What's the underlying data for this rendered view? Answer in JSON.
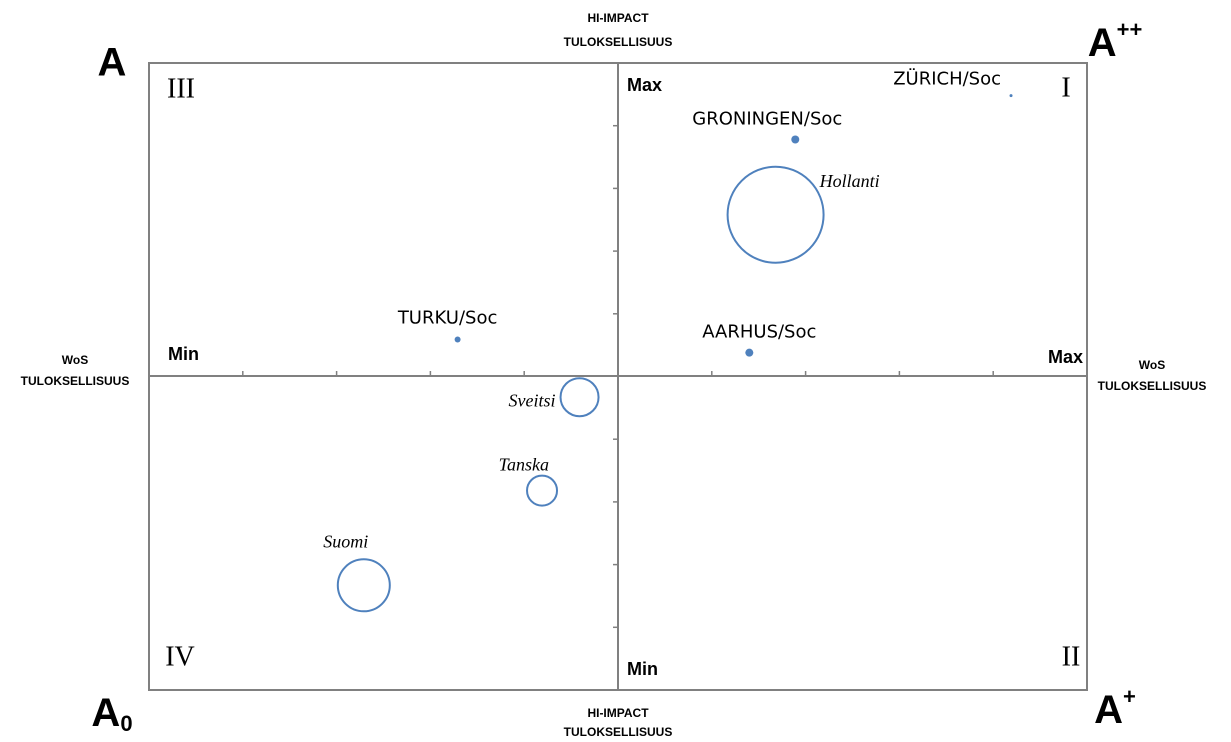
{
  "chart_data": {
    "type": "bubble",
    "top_axis_title": [
      "HI-IMPACT",
      "TULOKSELLISUUS"
    ],
    "bottom_axis_title": [
      "HI-IMPACT",
      "TULOKSELLISUUS"
    ],
    "left_axis_title": [
      "WoS",
      "TULOKSELLISUUS"
    ],
    "right_axis_title": [
      "WoS",
      "TULOKSELLISUUS"
    ],
    "corners": {
      "top_left": {
        "base": "A",
        "mark": ""
      },
      "top_right": {
        "base": "A",
        "mark": "++"
      },
      "bottom_left": {
        "base": "A",
        "mark": "0"
      },
      "bottom_right": {
        "base": "A",
        "mark": "+"
      }
    },
    "quadrants": {
      "top_right": "I",
      "bottom_right": "II",
      "top_left": "III",
      "bottom_left": "IV"
    },
    "axis_ends": {
      "y_max": "Max",
      "y_min": "Min",
      "x_min": "Min",
      "x_max": "Max"
    },
    "xlim": [
      -5,
      5
    ],
    "ylim": [
      -5,
      5
    ],
    "xticks": [
      -4,
      -3,
      -2,
      -1,
      1,
      2,
      3,
      4
    ],
    "yticks": [
      -4,
      -3,
      -2,
      -1,
      1,
      2,
      3,
      4
    ],
    "color": "#4f81bd",
    "labels": [
      "ZÜRICH/Soc",
      "GRONINGEN/Soc",
      "Hollanti",
      "AARHUS/Soc",
      "TURKU/Soc",
      "Sveitsi",
      "Tanska",
      "Suomi"
    ],
    "label_italic": [
      false,
      false,
      true,
      false,
      false,
      true,
      true,
      true
    ],
    "x": [
      4.19,
      1.89,
      1.68,
      1.4,
      -1.71,
      -0.41,
      -0.81,
      -2.71
    ],
    "values": [
      4.48,
      3.78,
      2.58,
      0.38,
      0.59,
      -0.33,
      -1.82,
      -3.33
    ],
    "sizes": [
      1.5,
      4,
      48,
      4,
      3,
      19,
      15,
      26
    ]
  }
}
